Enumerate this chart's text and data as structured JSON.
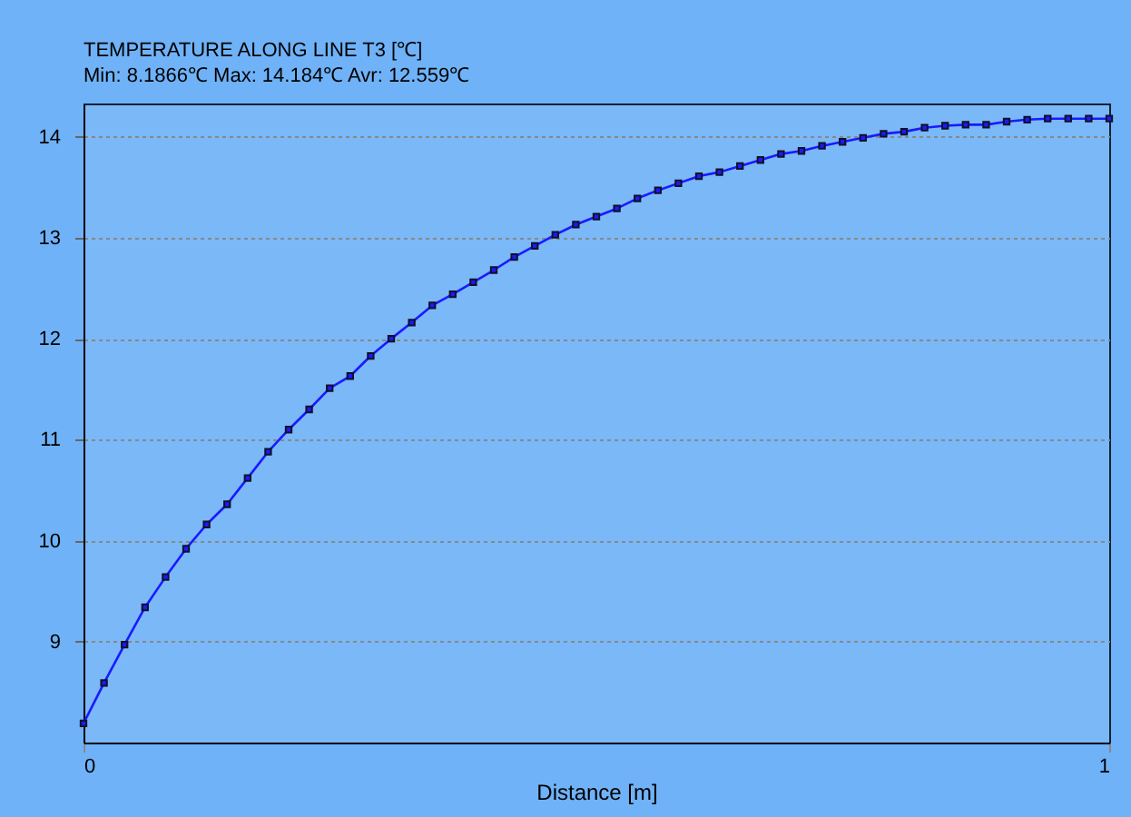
{
  "chart_data": {
    "type": "line",
    "title": "TEMPERATURE ALONG LINE T3 [℃]",
    "subtitle": "Min: 8.1866℃   Max: 14.184℃   Avr: 12.559℃",
    "xlabel": "Distance [m]",
    "x": [
      0,
      0.02,
      0.04,
      0.06,
      0.08,
      0.1,
      0.12,
      0.14,
      0.16,
      0.18,
      0.2,
      0.22,
      0.24,
      0.26,
      0.28,
      0.3,
      0.32,
      0.34,
      0.36,
      0.38,
      0.4,
      0.42,
      0.44,
      0.46,
      0.48,
      0.5,
      0.52,
      0.54,
      0.56,
      0.58,
      0.6,
      0.62,
      0.64,
      0.66,
      0.68,
      0.7,
      0.72,
      0.74,
      0.76,
      0.78,
      0.8,
      0.82,
      0.84,
      0.86,
      0.88,
      0.9,
      0.92,
      0.94,
      0.96,
      0.98,
      1
    ],
    "series": [
      {
        "color": "#1a1aff",
        "values": [
          8.19,
          8.59,
          8.97,
          9.34,
          9.64,
          9.92,
          10.16,
          10.36,
          10.62,
          10.88,
          11.1,
          11.3,
          11.51,
          11.63,
          11.83,
          12.0,
          12.16,
          12.33,
          12.44,
          12.56,
          12.68,
          12.81,
          12.92,
          13.03,
          13.13,
          13.21,
          13.29,
          13.39,
          13.47,
          13.54,
          13.61,
          13.65,
          13.71,
          13.77,
          13.83,
          13.86,
          13.91,
          13.95,
          13.99,
          14.03,
          14.05,
          14.09,
          14.11,
          14.12,
          14.12,
          14.15,
          14.17,
          14.18,
          14.18,
          14.18,
          14.18
        ]
      }
    ],
    "xlim": [
      0,
      1
    ],
    "xticks": [
      0,
      1
    ],
    "ylim": [
      8.0,
      14.33
    ],
    "yticks": [
      9,
      10,
      11,
      12,
      13,
      14
    ],
    "grid": "y",
    "marker": "square",
    "line_style": "solid"
  }
}
